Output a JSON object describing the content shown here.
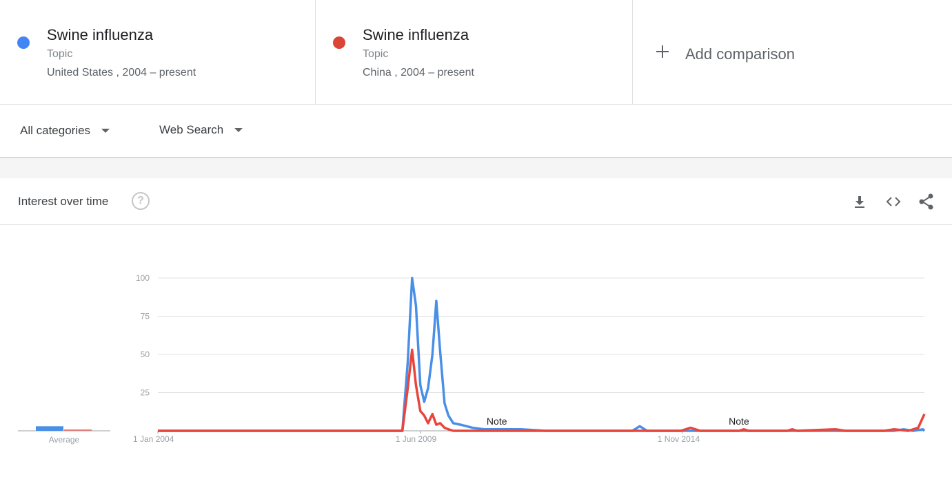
{
  "compare": {
    "terms": [
      {
        "title": "Swine influenza",
        "type": "Topic",
        "region": "United States",
        "range": "2004 – present",
        "color": "#4285f4"
      },
      {
        "title": "Swine influenza",
        "type": "Topic",
        "region": "China",
        "range": "2004 – present",
        "color": "#db4437"
      }
    ],
    "add_label": "Add comparison",
    "add_icon": "plus-icon"
  },
  "filters": {
    "category": "All categories",
    "search_type": "Web Search"
  },
  "card": {
    "title": "Interest over time",
    "help_icon": "?",
    "icons": [
      "download-icon",
      "embed-code-icon",
      "share-icon"
    ]
  },
  "chart_data": {
    "type": "line",
    "ylim": [
      0,
      100
    ],
    "yticks": [
      "100",
      "75",
      "50",
      "25"
    ],
    "xtick_labels": [
      "1 Jan 2004",
      "1 Jun 2009",
      "1 Nov 2014"
    ],
    "average_label": "Average",
    "notes": [
      "Note",
      "Note"
    ],
    "averages": [
      {
        "name": "United States",
        "value": 3
      },
      {
        "name": "China",
        "value": 1
      }
    ],
    "series": [
      {
        "name": "United States",
        "color": "#4a8fe7",
        "points": [
          [
            2004.0,
            0
          ],
          [
            2008.5,
            0
          ],
          [
            2009.05,
            0
          ],
          [
            2009.16,
            45
          ],
          [
            2009.25,
            100
          ],
          [
            2009.33,
            82
          ],
          [
            2009.42,
            30
          ],
          [
            2009.5,
            19
          ],
          [
            2009.58,
            28
          ],
          [
            2009.67,
            50
          ],
          [
            2009.75,
            85
          ],
          [
            2009.83,
            52
          ],
          [
            2009.92,
            18
          ],
          [
            2010.0,
            10
          ],
          [
            2010.1,
            5
          ],
          [
            2010.25,
            4
          ],
          [
            2010.5,
            2
          ],
          [
            2010.75,
            1
          ],
          [
            2011.0,
            1
          ],
          [
            2011.5,
            1
          ],
          [
            2012.0,
            0
          ],
          [
            2013.8,
            0
          ],
          [
            2013.95,
            3
          ],
          [
            2014.1,
            0
          ],
          [
            2014.7,
            0
          ],
          [
            2014.8,
            0
          ],
          [
            2016.0,
            0
          ],
          [
            2018.0,
            0
          ],
          [
            2019.0,
            0
          ],
          [
            2019.2,
            0
          ],
          [
            2019.4,
            1
          ],
          [
            2019.6,
            0
          ],
          [
            2019.8,
            1
          ],
          [
            2019.83,
            0
          ]
        ]
      },
      {
        "name": "China",
        "color": "#e8453c",
        "points": [
          [
            2004.0,
            0
          ],
          [
            2008.5,
            0
          ],
          [
            2009.05,
            0
          ],
          [
            2009.16,
            28
          ],
          [
            2009.25,
            53
          ],
          [
            2009.33,
            30
          ],
          [
            2009.42,
            13
          ],
          [
            2009.5,
            10
          ],
          [
            2009.58,
            5
          ],
          [
            2009.67,
            11
          ],
          [
            2009.75,
            4
          ],
          [
            2009.83,
            5
          ],
          [
            2009.92,
            2
          ],
          [
            2010.0,
            1
          ],
          [
            2010.1,
            0
          ],
          [
            2014.8,
            0
          ],
          [
            2015.0,
            2
          ],
          [
            2015.2,
            0
          ],
          [
            2016.0,
            0
          ],
          [
            2016.1,
            1
          ],
          [
            2016.2,
            0
          ],
          [
            2017.0,
            0
          ],
          [
            2017.1,
            1
          ],
          [
            2017.2,
            0
          ],
          [
            2018.0,
            1
          ],
          [
            2018.2,
            0
          ],
          [
            2019.0,
            0
          ],
          [
            2019.2,
            1
          ],
          [
            2019.5,
            0
          ],
          [
            2019.7,
            2
          ],
          [
            2019.83,
            11
          ]
        ]
      }
    ]
  }
}
